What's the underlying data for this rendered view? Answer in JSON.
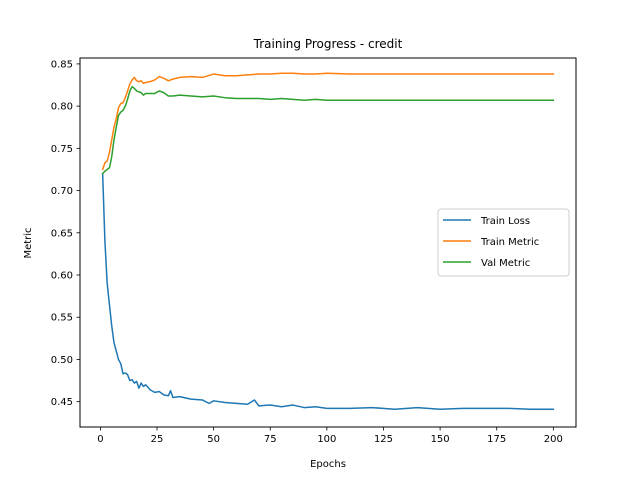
{
  "chart_data": {
    "type": "line",
    "title": "Training Progress - credit",
    "xlabel": "Epochs",
    "ylabel": "Metric",
    "xlim": [
      -9,
      210
    ],
    "ylim": [
      0.42,
      0.857
    ],
    "xticks": [
      0,
      25,
      50,
      75,
      100,
      125,
      150,
      175,
      200
    ],
    "yticks": [
      0.45,
      0.5,
      0.55,
      0.6,
      0.65,
      0.7,
      0.75,
      0.8,
      0.85
    ],
    "grid": false,
    "legend_position": "center-right",
    "series": [
      {
        "name": "Train Loss",
        "color": "#1f77b4",
        "points": [
          [
            1,
            0.72
          ],
          [
            2,
            0.64
          ],
          [
            3,
            0.59
          ],
          [
            4,
            0.565
          ],
          [
            5,
            0.54
          ],
          [
            6,
            0.52
          ],
          [
            7,
            0.51
          ],
          [
            8,
            0.5
          ],
          [
            9,
            0.495
          ],
          [
            10,
            0.483
          ],
          [
            11,
            0.484
          ],
          [
            12,
            0.482
          ],
          [
            13,
            0.475
          ],
          [
            14,
            0.476
          ],
          [
            15,
            0.472
          ],
          [
            16,
            0.474
          ],
          [
            17,
            0.466
          ],
          [
            18,
            0.472
          ],
          [
            19,
            0.468
          ],
          [
            20,
            0.47
          ],
          [
            22,
            0.464
          ],
          [
            24,
            0.461
          ],
          [
            26,
            0.462
          ],
          [
            28,
            0.458
          ],
          [
            30,
            0.457
          ],
          [
            31,
            0.463
          ],
          [
            32,
            0.455
          ],
          [
            35,
            0.456
          ],
          [
            40,
            0.453
          ],
          [
            45,
            0.452
          ],
          [
            48,
            0.448
          ],
          [
            50,
            0.451
          ],
          [
            55,
            0.449
          ],
          [
            60,
            0.448
          ],
          [
            65,
            0.447
          ],
          [
            68,
            0.452
          ],
          [
            70,
            0.445
          ],
          [
            75,
            0.446
          ],
          [
            80,
            0.444
          ],
          [
            85,
            0.446
          ],
          [
            90,
            0.443
          ],
          [
            95,
            0.444
          ],
          [
            100,
            0.442
          ],
          [
            110,
            0.442
          ],
          [
            120,
            0.443
          ],
          [
            130,
            0.441
          ],
          [
            140,
            0.443
          ],
          [
            150,
            0.441
          ],
          [
            160,
            0.442
          ],
          [
            170,
            0.442
          ],
          [
            180,
            0.442
          ],
          [
            190,
            0.441
          ],
          [
            200,
            0.441
          ]
        ]
      },
      {
        "name": "Train Metric",
        "color": "#ff7f0e",
        "points": [
          [
            1,
            0.725
          ],
          [
            2,
            0.733
          ],
          [
            3,
            0.735
          ],
          [
            4,
            0.745
          ],
          [
            5,
            0.76
          ],
          [
            6,
            0.775
          ],
          [
            7,
            0.785
          ],
          [
            8,
            0.798
          ],
          [
            9,
            0.803
          ],
          [
            10,
            0.804
          ],
          [
            11,
            0.81
          ],
          [
            12,
            0.818
          ],
          [
            13,
            0.826
          ],
          [
            14,
            0.831
          ],
          [
            15,
            0.834
          ],
          [
            16,
            0.83
          ],
          [
            17,
            0.829
          ],
          [
            18,
            0.83
          ],
          [
            19,
            0.827
          ],
          [
            20,
            0.828
          ],
          [
            22,
            0.829
          ],
          [
            24,
            0.831
          ],
          [
            26,
            0.835
          ],
          [
            28,
            0.833
          ],
          [
            30,
            0.83
          ],
          [
            32,
            0.832
          ],
          [
            35,
            0.834
          ],
          [
            40,
            0.835
          ],
          [
            45,
            0.834
          ],
          [
            50,
            0.838
          ],
          [
            55,
            0.836
          ],
          [
            60,
            0.836
          ],
          [
            65,
            0.837
          ],
          [
            70,
            0.838
          ],
          [
            75,
            0.838
          ],
          [
            80,
            0.839
          ],
          [
            85,
            0.839
          ],
          [
            90,
            0.838
          ],
          [
            95,
            0.838
          ],
          [
            100,
            0.839
          ],
          [
            110,
            0.838
          ],
          [
            120,
            0.838
          ],
          [
            130,
            0.838
          ],
          [
            140,
            0.838
          ],
          [
            150,
            0.838
          ],
          [
            160,
            0.838
          ],
          [
            170,
            0.838
          ],
          [
            180,
            0.838
          ],
          [
            190,
            0.838
          ],
          [
            200,
            0.838
          ]
        ]
      },
      {
        "name": "Val Metric",
        "color": "#2ca02c",
        "points": [
          [
            1,
            0.72
          ],
          [
            2,
            0.723
          ],
          [
            3,
            0.725
          ],
          [
            4,
            0.727
          ],
          [
            5,
            0.74
          ],
          [
            6,
            0.76
          ],
          [
            7,
            0.775
          ],
          [
            8,
            0.789
          ],
          [
            9,
            0.793
          ],
          [
            10,
            0.795
          ],
          [
            11,
            0.8
          ],
          [
            12,
            0.808
          ],
          [
            13,
            0.818
          ],
          [
            14,
            0.823
          ],
          [
            15,
            0.821
          ],
          [
            16,
            0.818
          ],
          [
            17,
            0.817
          ],
          [
            18,
            0.816
          ],
          [
            19,
            0.813
          ],
          [
            20,
            0.815
          ],
          [
            22,
            0.815
          ],
          [
            24,
            0.815
          ],
          [
            26,
            0.818
          ],
          [
            28,
            0.816
          ],
          [
            30,
            0.812
          ],
          [
            32,
            0.812
          ],
          [
            35,
            0.813
          ],
          [
            40,
            0.812
          ],
          [
            45,
            0.811
          ],
          [
            50,
            0.812
          ],
          [
            55,
            0.81
          ],
          [
            60,
            0.809
          ],
          [
            65,
            0.809
          ],
          [
            70,
            0.809
          ],
          [
            75,
            0.808
          ],
          [
            80,
            0.809
          ],
          [
            85,
            0.808
          ],
          [
            90,
            0.807
          ],
          [
            95,
            0.808
          ],
          [
            100,
            0.807
          ],
          [
            110,
            0.807
          ],
          [
            120,
            0.807
          ],
          [
            130,
            0.807
          ],
          [
            140,
            0.807
          ],
          [
            150,
            0.807
          ],
          [
            160,
            0.807
          ],
          [
            170,
            0.807
          ],
          [
            180,
            0.807
          ],
          [
            190,
            0.807
          ],
          [
            200,
            0.807
          ]
        ]
      }
    ]
  }
}
